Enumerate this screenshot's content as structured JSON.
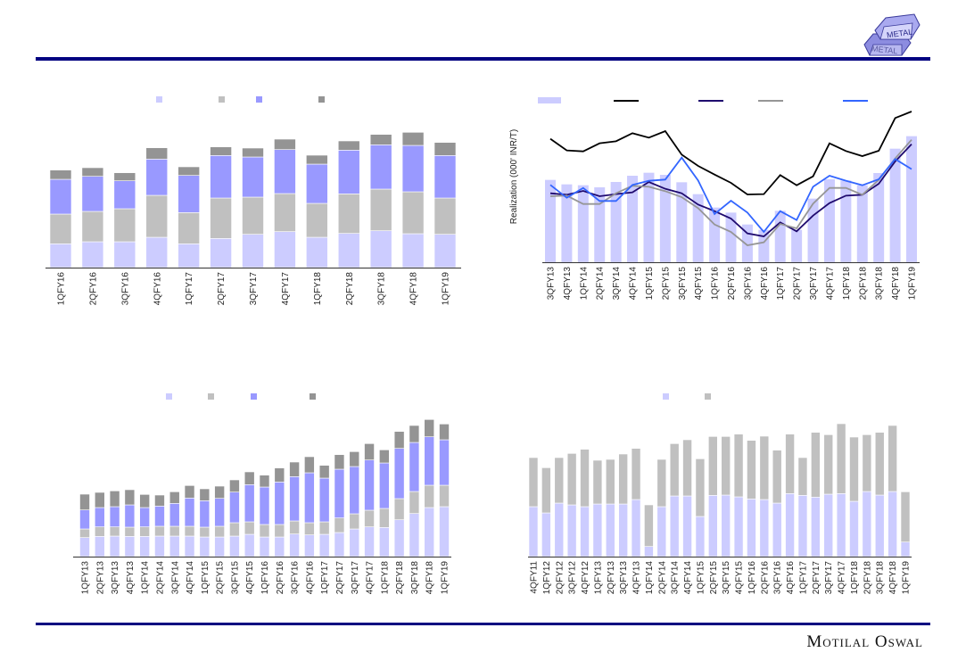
{
  "header": {
    "logo_text_top": "METAL",
    "logo_text_bottom": "METAL"
  },
  "footer": {
    "brand": "Motilal Oswal"
  },
  "colors": {
    "light": "#ccccff",
    "gray": "#c0c0c0",
    "blue": "#9999ff",
    "dark": "#949494",
    "rule": "#000080"
  },
  "chart_data": [
    {
      "id": "top-left",
      "type": "bar",
      "stacked": true,
      "title": "",
      "legend": "top",
      "units": "relative (axis not shown)",
      "ylim": [
        0,
        507
      ],
      "categories": [
        "1QFY16",
        "2QFY16",
        "3QFY16",
        "4QFY16",
        "1QFY17",
        "2QFY17",
        "3QFY17",
        "4QFY17",
        "1QFY18",
        "2QFY18",
        "3QFY18",
        "4QFY18",
        "1QFY19"
      ],
      "series": [
        {
          "name": "",
          "color": "#ccccff",
          "values": [
            80,
            87,
            87,
            102,
            80,
            98,
            112,
            121,
            102,
            115,
            124,
            114,
            112
          ]
        },
        {
          "name": "",
          "color": "#c0c0c0",
          "values": [
            100,
            102,
            111,
            141,
            105,
            136,
            125,
            128,
            114,
            133,
            140,
            141,
            122
          ]
        },
        {
          "name": "",
          "color": "#9999ff",
          "values": [
            117,
            118,
            94,
            122,
            125,
            143,
            135,
            148,
            132,
            147,
            149,
            156,
            143
          ]
        },
        {
          "name": "",
          "color": "#949494",
          "values": [
            31,
            29,
            27,
            38,
            29,
            29,
            30,
            35,
            30,
            31,
            35,
            44,
            44
          ]
        }
      ]
    },
    {
      "id": "top-right",
      "type": "bar+line",
      "title": "",
      "ylabel": "Realization (000' INR/T)",
      "legend": "top",
      "units": "relative (axis not shown)",
      "ylim": [
        0,
        507
      ],
      "categories": [
        "3QFY13",
        "4QFY13",
        "1QFY14",
        "2QFY14",
        "3QFY14",
        "4QFY14",
        "1QFY15",
        "2QFY15",
        "3QFY15",
        "4QFY15",
        "1QFY16",
        "2QFY16",
        "3QFY16",
        "4QFY16",
        "1QFY17",
        "2QFY17",
        "3QFY17",
        "4QFY17",
        "1QFY18",
        "2QFY18",
        "3QFY18",
        "4QFY18",
        "1QFY19"
      ],
      "bars": {
        "name": "",
        "color": "#ccccff",
        "values": [
          277,
          262,
          259,
          252,
          270,
          291,
          301,
          294,
          269,
          229,
          184,
          167,
          127,
          109,
          173,
          109,
          214,
          279,
          275,
          259,
          300,
          382,
          424
        ]
      },
      "lines": [
        {
          "name": "",
          "color": "#000000",
          "values": [
            415,
            376,
            373,
            400,
            407,
            434,
            419,
            441,
            362,
            324,
            295,
            267,
            228,
            229,
            293,
            259,
            289,
            400,
            374,
            357,
            375,
            485,
            507
          ]
        },
        {
          "name": "",
          "color": "#1f0a6e",
          "values": [
            232,
            227,
            240,
            222,
            229,
            235,
            270,
            247,
            232,
            194,
            172,
            147,
            97,
            87,
            134,
            104,
            157,
            199,
            224,
            227,
            264,
            339,
            397
          ]
        },
        {
          "name": "",
          "color": "#969696",
          "values": [
            222,
            224,
            196,
            196,
            232,
            257,
            254,
            239,
            219,
            182,
            127,
            102,
            57,
            67,
            129,
            114,
            197,
            250,
            250,
            227,
            277,
            349,
            412
          ]
        },
        {
          "name": "",
          "color": "#3366ff",
          "values": [
            260,
            217,
            250,
            206,
            206,
            260,
            274,
            278,
            352,
            275,
            162,
            207,
            167,
            102,
            172,
            142,
            254,
            291,
            274,
            259,
            279,
            347,
            313
          ]
        }
      ]
    },
    {
      "id": "bottom-left",
      "type": "bar",
      "stacked": true,
      "title": "",
      "legend": "top",
      "units": "relative (axis not shown)",
      "ylim": [
        0,
        507
      ],
      "categories": [
        "1QFY13",
        "2QFY13",
        "3QFY13",
        "4QFY13",
        "1QFY14",
        "2QFY14",
        "3QFY14",
        "4QFY14",
        "1QFY15",
        "2QFY15",
        "3QFY15",
        "4QFY15",
        "1QFY16",
        "2QFY16",
        "3QFY16",
        "4QFY16",
        "1QFY17",
        "2QFY17",
        "3QFY17",
        "4QFY17",
        "1QFY18",
        "2QFY18",
        "3QFY18",
        "4QFY18",
        "1QFY19"
      ],
      "series": [
        {
          "name": "",
          "color": "#ccccff",
          "values": [
            64,
            68,
            69,
            68,
            68,
            69,
            69,
            69,
            66,
            66,
            69,
            75,
            66,
            66,
            76,
            73,
            75,
            81,
            93,
            100,
            98,
            124,
            145,
            165,
            168
          ]
        },
        {
          "name": "",
          "color": "#c0c0c0",
          "values": [
            29,
            32,
            31,
            31,
            32,
            33,
            33,
            33,
            33,
            36,
            45,
            42,
            42,
            42,
            44,
            41,
            42,
            49,
            51,
            56,
            64,
            71,
            74,
            75,
            72
          ]
        },
        {
          "name": "",
          "color": "#9999ff",
          "values": [
            64,
            65,
            68,
            75,
            65,
            68,
            77,
            95,
            89,
            94,
            103,
            125,
            126,
            143,
            149,
            168,
            147,
            164,
            159,
            169,
            153,
            169,
            165,
            163,
            153
          ]
        },
        {
          "name": "",
          "color": "#949494",
          "values": [
            53,
            51,
            53,
            51,
            44,
            37,
            39,
            42,
            40,
            41,
            41,
            43,
            40,
            47,
            49,
            54,
            43,
            49,
            50,
            55,
            44,
            57,
            57,
            58,
            53
          ]
        }
      ]
    },
    {
      "id": "bottom-right",
      "type": "bar",
      "stacked": true,
      "title": "",
      "legend": "top",
      "units": "relative (axis not shown)",
      "ylim": [
        0,
        507
      ],
      "categories": [
        "4QFY11",
        "1QFY12",
        "2QFY12",
        "3QFY12",
        "4QFY12",
        "1QFY13",
        "2QFY13",
        "3QFY13",
        "4QFY13",
        "1QFY14",
        "2QFY14",
        "3QFY14",
        "4QFY14",
        "1QFY15",
        "2QFY15",
        "3QFY15",
        "4QFY15",
        "1QFY16",
        "2QFY16",
        "3QFY16",
        "4QFY16",
        "1QFY17",
        "2QFY17",
        "3QFY17",
        "4QFY17",
        "1QFY18",
        "2QFY18",
        "3QFY18",
        "4QFY18",
        "1QFY19"
      ],
      "series": [
        {
          "name": "",
          "color": "#ccccff",
          "values": [
            168,
            147,
            180,
            174,
            168,
            177,
            177,
            177,
            192,
            34,
            168,
            204,
            204,
            135,
            206,
            207,
            201,
            194,
            192,
            180,
            212,
            206,
            200,
            210,
            212,
            186,
            219,
            207,
            219,
            49
          ]
        },
        {
          "name": "",
          "color": "#c0c0c0",
          "values": [
            165,
            152,
            153,
            173,
            193,
            147,
            150,
            168,
            172,
            140,
            159,
            176,
            189,
            194,
            198,
            197,
            211,
            197,
            213,
            178,
            200,
            127,
            218,
            200,
            235,
            216,
            191,
            211,
            222,
            169
          ]
        }
      ]
    }
  ]
}
